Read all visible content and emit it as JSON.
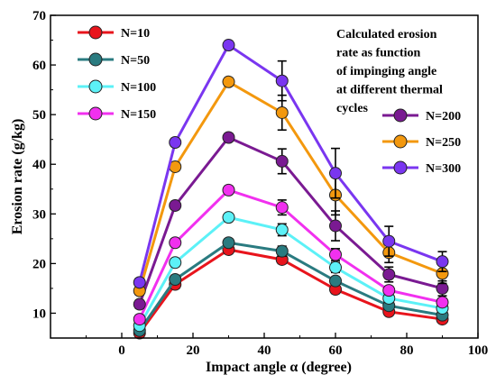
{
  "chart_data": {
    "type": "line",
    "xlabel": "Impact angle α (degree)",
    "ylabel": "Erosion rate (g/kg)",
    "xlim": [
      -20,
      100
    ],
    "ylim": [
      5,
      70
    ],
    "xticks": [
      0,
      20,
      40,
      60,
      80,
      100
    ],
    "yticks": [
      10,
      20,
      30,
      40,
      50,
      60,
      70
    ],
    "grid": false,
    "annotation": [
      "Calculated erosion",
      "rate as function",
      "of impinging angle",
      "at different thermal",
      "cycles"
    ],
    "x": [
      5,
      15,
      30,
      45,
      60,
      75,
      90
    ],
    "series": [
      {
        "name": "N=10",
        "color": "#e8141c",
        "values": [
          6.0,
          15.8,
          22.8,
          20.8,
          14.8,
          10.3,
          8.8
        ],
        "errors": [
          0.5,
          0.8,
          0.8,
          0.8,
          0.8,
          0.6,
          0.6
        ]
      },
      {
        "name": "N=50",
        "color": "#2a7b80",
        "values": [
          6.5,
          16.8,
          24.2,
          22.5,
          16.5,
          11.5,
          9.6
        ],
        "errors": [
          0.5,
          0.8,
          0.8,
          1.0,
          0.8,
          0.6,
          0.6
        ]
      },
      {
        "name": "N=100",
        "color": "#5cf1f7",
        "values": [
          7.5,
          20.2,
          29.3,
          26.8,
          19.2,
          13.0,
          11.0
        ],
        "errors": [
          0.5,
          0.8,
          0.8,
          1.2,
          1.0,
          0.8,
          0.8
        ]
      },
      {
        "name": "N=150",
        "color": "#f130ef",
        "values": [
          8.8,
          24.2,
          34.8,
          31.3,
          21.8,
          14.6,
          12.2
        ],
        "errors": [
          0.8,
          0.8,
          0.8,
          1.5,
          1.2,
          0.8,
          0.8
        ]
      },
      {
        "name": "N=200",
        "color": "#7a1a92",
        "values": [
          11.8,
          31.7,
          45.4,
          40.6,
          27.6,
          17.8,
          15.0
        ],
        "errors": [
          0.8,
          0.8,
          0.8,
          2.5,
          3.0,
          1.5,
          1.5
        ]
      },
      {
        "name": "N=250",
        "color": "#f3980e",
        "values": [
          14.5,
          39.5,
          56.6,
          50.4,
          33.8,
          22.2,
          18.0
        ],
        "errors": [
          0.8,
          0.8,
          0.8,
          3.5,
          4.0,
          2.0,
          2.0
        ]
      },
      {
        "name": "N=300",
        "color": "#7a36f0",
        "values": [
          16.2,
          44.4,
          64.0,
          56.8,
          38.2,
          24.5,
          20.4
        ],
        "errors": [
          0.8,
          0.8,
          0.8,
          4.0,
          5.0,
          3.0,
          2.0
        ]
      }
    ]
  }
}
